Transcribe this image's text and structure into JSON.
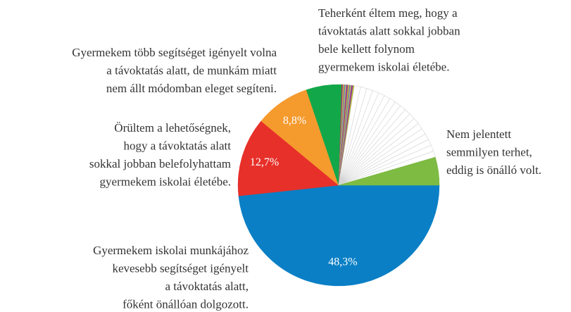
{
  "chart_data": {
    "type": "pie",
    "categories": [
      [
        "Gyermekem iskolai munkájához",
        "kevesebb segítséget igényelt",
        "a távoktatás alatt,",
        "főként önállóan dolgozott."
      ],
      [
        "Örültem a lehetőségnek,",
        "hogy a távoktatás alatt",
        "sokkal jobban belefolyhattam",
        "gyermekem iskolai életébe."
      ],
      [
        "Gyermekem több segítséget igényelt volna",
        "a távoktatás alatt, de munkám miatt",
        "nem állt módomban eleget segíteni."
      ],
      [
        "Teherként éltem meg, hogy a",
        "távoktatás alatt sokkal jobban",
        "bele kellett folynom",
        "gyermekem iskolai életébe."
      ],
      null,
      null,
      null,
      null,
      null,
      null,
      null,
      null,
      null,
      null,
      null,
      null,
      null,
      null,
      null,
      null,
      null,
      null,
      null,
      null,
      null,
      null,
      null,
      null,
      null,
      null,
      null,
      null,
      null,
      null,
      null,
      null,
      null,
      null,
      null,
      null,
      null,
      null,
      [
        "Nem jelentett",
        "semmilyen terhet,",
        "eddig is önálló volt."
      ]
    ],
    "values": [
      48.3,
      12.7,
      8.8,
      5.7,
      0.1,
      0.1,
      0.1,
      0.1,
      0.1,
      0.1,
      0.1,
      0.1,
      0.1,
      0.1,
      0.1,
      0.1,
      0.1,
      0.1,
      0.1,
      0.1,
      0.1,
      0.1,
      0.1,
      0.1,
      1,
      1,
      1,
      1,
      1,
      1,
      1,
      1,
      1,
      1,
      1,
      1,
      1,
      1,
      1,
      1,
      1,
      1,
      4.5
    ],
    "value_labels": [
      "48,3%",
      "12,7%",
      "8,8%",
      null,
      null,
      null,
      null,
      null,
      null,
      null,
      null,
      null,
      null,
      null,
      null,
      null,
      null,
      null,
      null,
      null,
      null,
      null,
      null,
      null,
      null,
      null,
      null,
      null,
      null,
      null,
      null,
      null,
      null,
      null,
      null,
      null,
      null,
      null,
      null,
      null,
      null,
      null,
      null
    ],
    "colors": [
      "#0a7fc5",
      "#e7302a",
      "#f59a2d",
      "#12a84a",
      "#e5263a",
      "#3b5fc9",
      "#f7a21b",
      "#93c83e",
      "#c33cb8",
      "#2bbfc4",
      "#f5cf10",
      "#6a5df0",
      "#e5263a",
      "#3b5fc9",
      "#f7a21b",
      "#93c83e",
      "#c33cb8",
      "#2bbfc4",
      "#f5cf10",
      "#6a5df0",
      "#e5263a",
      "#3b5fc9",
      "#f7a21b",
      "#93c83e",
      "#ffffff",
      "#ffffff",
      "#ffffff",
      "#ffffff",
      "#ffffff",
      "#ffffff",
      "#ffffff",
      "#ffffff",
      "#ffffff",
      "#ffffff",
      "#ffffff",
      "#ffffff",
      "#ffffff",
      "#ffffff",
      "#ffffff",
      "#ffffff",
      "#ffffff",
      "#ffffff",
      "#7dbb42"
    ]
  }
}
